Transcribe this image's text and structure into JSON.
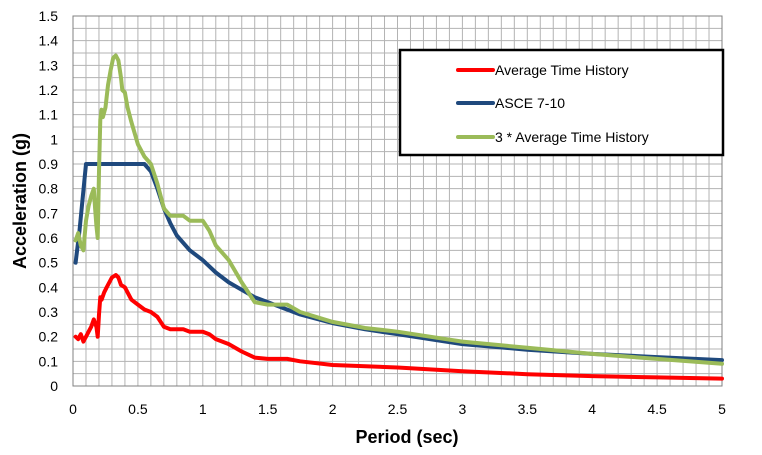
{
  "chart_data": {
    "type": "line",
    "title": "",
    "xlabel": "Period (sec)",
    "ylabel": "Acceleration (g)",
    "xlim": [
      0,
      5
    ],
    "ylim": [
      0,
      1.5
    ],
    "x_ticks": [
      0,
      0.5,
      1,
      1.5,
      2,
      2.5,
      3,
      3.5,
      4,
      4.5,
      5
    ],
    "x_tick_labels": [
      "0",
      "0.5",
      "1",
      "1.5",
      "2",
      "2.5",
      "3",
      "3.5",
      "4",
      "4.5",
      "5"
    ],
    "y_ticks": [
      0,
      0.1,
      0.2,
      0.3,
      0.4,
      0.5,
      0.6,
      0.7,
      0.8,
      0.9,
      1,
      1.1,
      1.2,
      1.3,
      1.4,
      1.5
    ],
    "y_tick_labels": [
      "0",
      "0.1",
      "0.2",
      "0.3",
      "0.4",
      "0.5",
      "0.6",
      "0.7",
      "0.8",
      "0.9",
      "1",
      "1.1",
      "1.2",
      "1.3",
      "1.4",
      "1.5"
    ],
    "grid": true,
    "legend_position": "top-right",
    "series": [
      {
        "name": "Average Time History",
        "color": "#ff0000",
        "points": [
          [
            0.02,
            0.2
          ],
          [
            0.04,
            0.19
          ],
          [
            0.06,
            0.21
          ],
          [
            0.08,
            0.18
          ],
          [
            0.1,
            0.2
          ],
          [
            0.12,
            0.22
          ],
          [
            0.14,
            0.24
          ],
          [
            0.16,
            0.27
          ],
          [
            0.18,
            0.24
          ],
          [
            0.19,
            0.2
          ],
          [
            0.2,
            0.29
          ],
          [
            0.21,
            0.36
          ],
          [
            0.22,
            0.35
          ],
          [
            0.24,
            0.38
          ],
          [
            0.26,
            0.4
          ],
          [
            0.28,
            0.42
          ],
          [
            0.3,
            0.44
          ],
          [
            0.33,
            0.45
          ],
          [
            0.35,
            0.44
          ],
          [
            0.37,
            0.41
          ],
          [
            0.4,
            0.4
          ],
          [
            0.42,
            0.38
          ],
          [
            0.45,
            0.35
          ],
          [
            0.5,
            0.33
          ],
          [
            0.55,
            0.31
          ],
          [
            0.6,
            0.3
          ],
          [
            0.65,
            0.28
          ],
          [
            0.7,
            0.24
          ],
          [
            0.75,
            0.23
          ],
          [
            0.85,
            0.23
          ],
          [
            0.9,
            0.22
          ],
          [
            1.0,
            0.22
          ],
          [
            1.05,
            0.21
          ],
          [
            1.1,
            0.19
          ],
          [
            1.2,
            0.17
          ],
          [
            1.3,
            0.14
          ],
          [
            1.4,
            0.115
          ],
          [
            1.5,
            0.11
          ],
          [
            1.65,
            0.11
          ],
          [
            1.75,
            0.1
          ],
          [
            2.0,
            0.085
          ],
          [
            2.5,
            0.075
          ],
          [
            3.0,
            0.06
          ],
          [
            3.5,
            0.048
          ],
          [
            4.0,
            0.04
          ],
          [
            4.5,
            0.035
          ],
          [
            5.0,
            0.03
          ]
        ]
      },
      {
        "name": "ASCE 7-10",
        "color": "#1f497d",
        "points": [
          [
            0.02,
            0.5
          ],
          [
            0.05,
            0.63
          ],
          [
            0.1,
            0.9
          ],
          [
            0.15,
            0.9
          ],
          [
            0.3,
            0.9
          ],
          [
            0.45,
            0.9
          ],
          [
            0.5,
            0.9
          ],
          [
            0.55,
            0.9
          ],
          [
            0.6,
            0.87
          ],
          [
            0.65,
            0.8
          ],
          [
            0.7,
            0.72
          ],
          [
            0.75,
            0.66
          ],
          [
            0.8,
            0.61
          ],
          [
            0.9,
            0.55
          ],
          [
            1.0,
            0.51
          ],
          [
            1.1,
            0.46
          ],
          [
            1.2,
            0.42
          ],
          [
            1.3,
            0.39
          ],
          [
            1.4,
            0.36
          ],
          [
            1.5,
            0.34
          ],
          [
            1.6,
            0.32
          ],
          [
            1.75,
            0.29
          ],
          [
            2.0,
            0.255
          ],
          [
            2.25,
            0.23
          ],
          [
            2.5,
            0.21
          ],
          [
            2.75,
            0.19
          ],
          [
            3.0,
            0.17
          ],
          [
            3.5,
            0.147
          ],
          [
            4.0,
            0.13
          ],
          [
            4.5,
            0.117
          ],
          [
            5.0,
            0.105
          ]
        ]
      },
      {
        "name": "3 * Average Time History",
        "color": "#9bbb59",
        "points": [
          [
            0.02,
            0.59
          ],
          [
            0.04,
            0.62
          ],
          [
            0.06,
            0.57
          ],
          [
            0.08,
            0.55
          ],
          [
            0.1,
            0.67
          ],
          [
            0.12,
            0.73
          ],
          [
            0.14,
            0.77
          ],
          [
            0.16,
            0.8
          ],
          [
            0.17,
            0.72
          ],
          [
            0.18,
            0.65
          ],
          [
            0.19,
            0.6
          ],
          [
            0.2,
            0.87
          ],
          [
            0.21,
            1.08
          ],
          [
            0.22,
            1.12
          ],
          [
            0.23,
            1.09
          ],
          [
            0.25,
            1.13
          ],
          [
            0.27,
            1.22
          ],
          [
            0.29,
            1.28
          ],
          [
            0.31,
            1.33
          ],
          [
            0.33,
            1.34
          ],
          [
            0.35,
            1.32
          ],
          [
            0.37,
            1.25
          ],
          [
            0.38,
            1.2
          ],
          [
            0.4,
            1.19
          ],
          [
            0.42,
            1.13
          ],
          [
            0.45,
            1.07
          ],
          [
            0.5,
            0.98
          ],
          [
            0.55,
            0.93
          ],
          [
            0.6,
            0.9
          ],
          [
            0.65,
            0.82
          ],
          [
            0.7,
            0.72
          ],
          [
            0.75,
            0.69
          ],
          [
            0.85,
            0.69
          ],
          [
            0.9,
            0.67
          ],
          [
            1.0,
            0.67
          ],
          [
            1.05,
            0.63
          ],
          [
            1.1,
            0.57
          ],
          [
            1.2,
            0.51
          ],
          [
            1.3,
            0.42
          ],
          [
            1.4,
            0.34
          ],
          [
            1.5,
            0.33
          ],
          [
            1.65,
            0.33
          ],
          [
            1.75,
            0.3
          ],
          [
            2.0,
            0.26
          ],
          [
            2.25,
            0.235
          ],
          [
            2.5,
            0.22
          ],
          [
            2.75,
            0.2
          ],
          [
            3.0,
            0.18
          ],
          [
            3.5,
            0.155
          ],
          [
            4.0,
            0.13
          ],
          [
            4.5,
            0.11
          ],
          [
            5.0,
            0.09
          ]
        ]
      }
    ]
  }
}
